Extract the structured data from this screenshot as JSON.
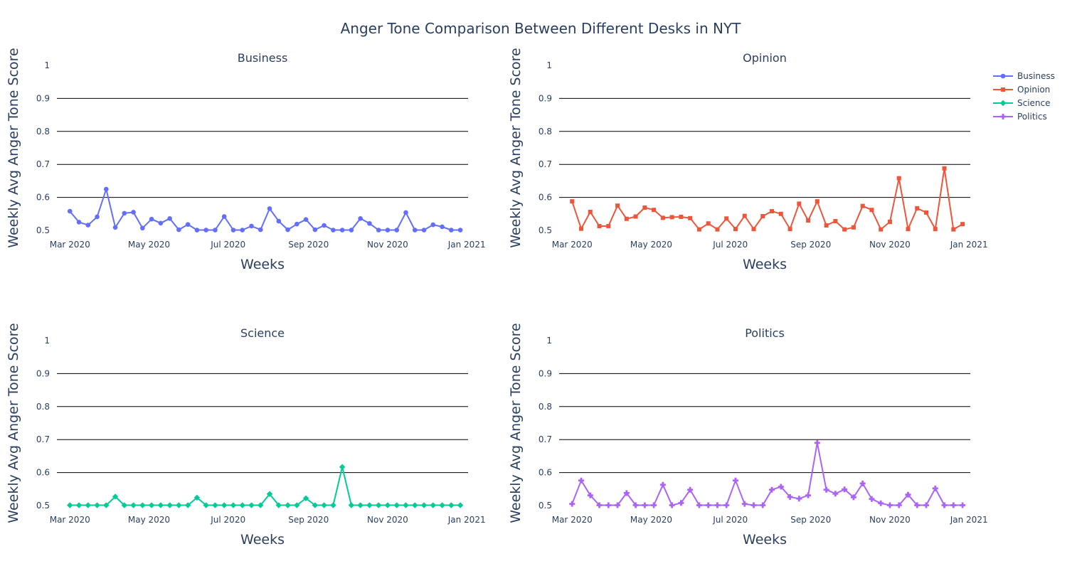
{
  "chart_data": {
    "type": "line",
    "title": "Anger Tone Comparison Between Different Desks in NYT",
    "xlabel": "Weeks",
    "ylabel": "Weekly Avg Anger Tone Score",
    "x_range": [
      "2020-02-20",
      "2021-01-02"
    ],
    "x_tick_labels": [
      "Mar 2020",
      "May 2020",
      "Jul 2020",
      "Sep 2020",
      "Nov 2020",
      "Jan 2021"
    ],
    "x_tick_dates": [
      "2020-03-01",
      "2020-05-01",
      "2020-07-01",
      "2020-09-01",
      "2020-11-01",
      "2021-01-01"
    ],
    "ylim": [
      0.5,
      1
    ],
    "y_ticks": [
      0.5,
      0.6,
      0.7,
      0.8,
      0.9,
      1
    ],
    "grid": "horizontal",
    "legend_position": "top-right",
    "x_dates": [
      "2020-03-01",
      "2020-03-08",
      "2020-03-15",
      "2020-03-22",
      "2020-03-29",
      "2020-04-05",
      "2020-04-12",
      "2020-04-19",
      "2020-04-26",
      "2020-05-03",
      "2020-05-10",
      "2020-05-17",
      "2020-05-24",
      "2020-05-31",
      "2020-06-07",
      "2020-06-14",
      "2020-06-21",
      "2020-06-28",
      "2020-07-05",
      "2020-07-12",
      "2020-07-19",
      "2020-07-26",
      "2020-08-02",
      "2020-08-09",
      "2020-08-16",
      "2020-08-23",
      "2020-08-30",
      "2020-09-06",
      "2020-09-13",
      "2020-09-20",
      "2020-09-27",
      "2020-10-04",
      "2020-10-11",
      "2020-10-18",
      "2020-10-25",
      "2020-11-01",
      "2020-11-08",
      "2020-11-15",
      "2020-11-22",
      "2020-11-29",
      "2020-12-06",
      "2020-12-13",
      "2020-12-20",
      "2020-12-27"
    ],
    "subplots": [
      {
        "title": "Business",
        "series": {
          "name": "Business",
          "color": "#636efa",
          "marker": "circle",
          "values": [
            0.558,
            0.525,
            0.516,
            0.541,
            0.625,
            0.509,
            0.552,
            0.555,
            0.507,
            0.534,
            0.522,
            0.536,
            0.502,
            0.518,
            0.501,
            0.501,
            0.501,
            0.542,
            0.501,
            0.501,
            0.513,
            0.502,
            0.566,
            0.528,
            0.502,
            0.519,
            0.533,
            0.502,
            0.515,
            0.501,
            0.501,
            0.501,
            0.536,
            0.521,
            0.501,
            0.501,
            0.501,
            0.554,
            0.501,
            0.501,
            0.517,
            0.511,
            0.501,
            0.501
          ]
        }
      },
      {
        "title": "Opinion",
        "series": {
          "name": "Opinion",
          "color": "#ef553b",
          "marker": "square",
          "values": [
            0.588,
            0.505,
            0.556,
            0.513,
            0.513,
            0.575,
            0.535,
            0.542,
            0.569,
            0.562,
            0.538,
            0.54,
            0.541,
            0.537,
            0.503,
            0.521,
            0.503,
            0.536,
            0.504,
            0.544,
            0.504,
            0.543,
            0.558,
            0.55,
            0.504,
            0.581,
            0.53,
            0.588,
            0.515,
            0.528,
            0.503,
            0.509,
            0.574,
            0.562,
            0.503,
            0.526,
            0.658,
            0.504,
            0.567,
            0.554,
            0.504,
            0.688,
            0.503,
            0.519
          ]
        }
      },
      {
        "title": "Science",
        "series": {
          "name": "Science",
          "color": "#00cc96",
          "marker": "diamond",
          "values": [
            0.501,
            0.501,
            0.501,
            0.501,
            0.501,
            0.527,
            0.501,
            0.501,
            0.501,
            0.501,
            0.501,
            0.501,
            0.501,
            0.501,
            0.524,
            0.501,
            0.501,
            0.501,
            0.501,
            0.501,
            0.501,
            0.501,
            0.535,
            0.501,
            0.501,
            0.501,
            0.522,
            0.501,
            0.501,
            0.501,
            0.617,
            0.501,
            0.501,
            0.501,
            0.501,
            0.501,
            0.501,
            0.501,
            0.501,
            0.501,
            0.501,
            0.501,
            0.501,
            0.501
          ]
        }
      },
      {
        "title": "Politics",
        "series": {
          "name": "Politics",
          "color": "#ab63fa",
          "marker": "cross",
          "values": [
            0.505,
            0.576,
            0.531,
            0.501,
            0.501,
            0.501,
            0.538,
            0.501,
            0.501,
            0.501,
            0.563,
            0.501,
            0.508,
            0.548,
            0.501,
            0.501,
            0.501,
            0.501,
            0.576,
            0.505,
            0.501,
            0.501,
            0.548,
            0.557,
            0.526,
            0.521,
            0.531,
            0.69,
            0.548,
            0.536,
            0.549,
            0.525,
            0.567,
            0.52,
            0.507,
            0.501,
            0.501,
            0.533,
            0.501,
            0.501,
            0.552,
            0.501,
            0.501,
            0.501
          ]
        }
      }
    ]
  }
}
